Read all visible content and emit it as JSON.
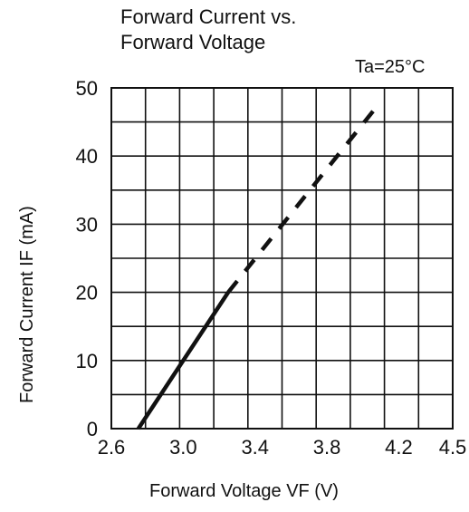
{
  "chart_data": {
    "type": "line",
    "title_lines": [
      "Forward Current vs.",
      "Forward Voltage"
    ],
    "annotation": "Ta=25°C",
    "xlabel": "Forward Voltage  VF (V)",
    "ylabel": "Forward Current  IF (mA)",
    "xlim": [
      2.6,
      4.5
    ],
    "ylim": [
      0,
      50
    ],
    "x_ticks": [
      2.6,
      3.0,
      3.4,
      3.8,
      4.2,
      4.5
    ],
    "x_tick_labels": [
      "2.6",
      "3.0",
      "3.4",
      "3.8",
      "4.2",
      "4.5"
    ],
    "y_ticks": [
      0,
      10,
      20,
      30,
      40,
      50
    ],
    "y_tick_labels": [
      "0",
      "10",
      "20",
      "30",
      "40",
      "50"
    ],
    "grid": true,
    "series": [
      {
        "line_style": "solid",
        "points": [
          {
            "x": 2.75,
            "y": 0
          },
          {
            "x": 3.25,
            "y": 20
          }
        ]
      },
      {
        "line_style": "dashed",
        "points": [
          {
            "x": 3.25,
            "y": 20
          },
          {
            "x": 4.1,
            "y": 48
          }
        ]
      }
    ]
  }
}
